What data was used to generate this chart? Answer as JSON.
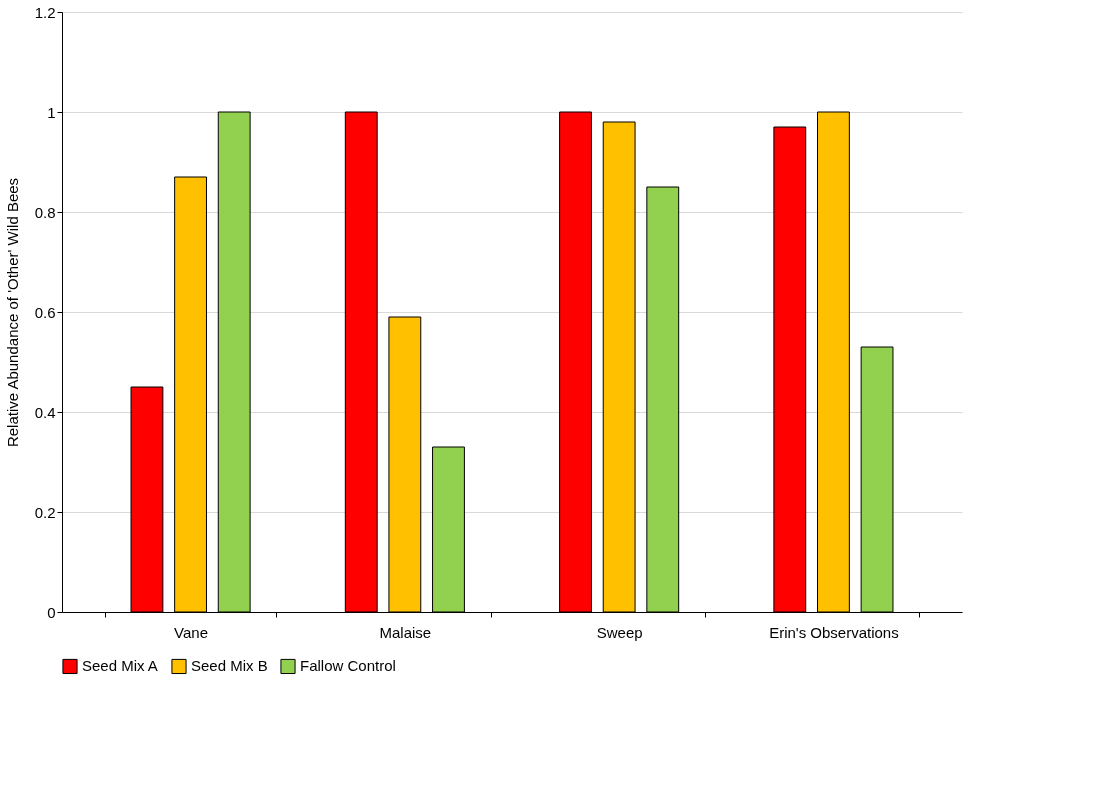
{
  "chart_data": {
    "type": "bar",
    "ylabel": "Relative Abundance of 'Other' Wild Bees",
    "categories": [
      "Vane",
      "Malaise",
      "Sweep",
      "Erin's Observations"
    ],
    "series": [
      {
        "name": "Seed Mix A",
        "color": "#ff0000",
        "values": [
          0.45,
          1.0,
          1.0,
          0.97
        ]
      },
      {
        "name": "Seed Mix B",
        "color": "#ffc000",
        "values": [
          0.87,
          0.59,
          0.98,
          1.0
        ]
      },
      {
        "name": "Fallow Control",
        "color": "#92d050",
        "values": [
          1.0,
          0.33,
          0.85,
          0.53
        ]
      }
    ],
    "ylim": [
      0,
      1.2
    ],
    "yticks": [
      0,
      0.2,
      0.4,
      0.6,
      0.8,
      1,
      1.2
    ],
    "grid": "y",
    "legend": "bottom"
  }
}
